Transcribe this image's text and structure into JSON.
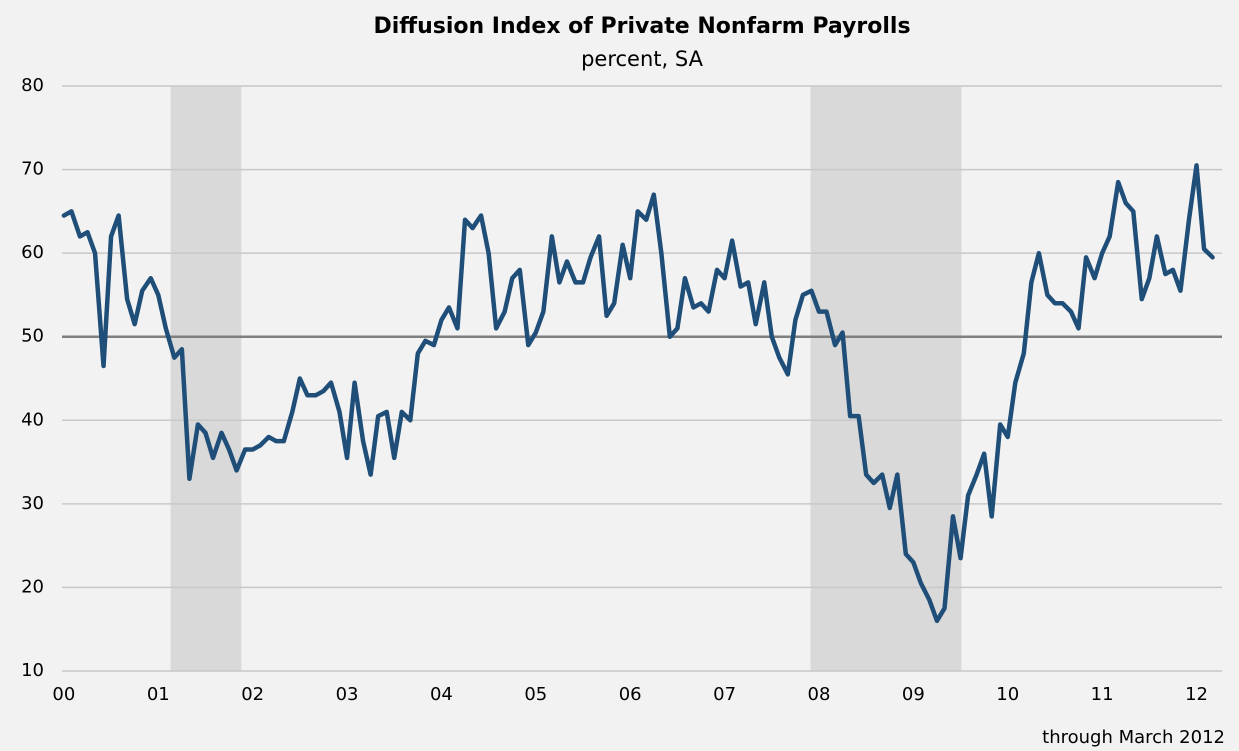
{
  "chart_data": {
    "type": "line",
    "title": "Diffusion Index of Private Nonfarm Payrolls",
    "subtitle": "percent, SA",
    "footnote": "through March 2012",
    "color": "#1f4e79",
    "x": [
      0,
      0.08,
      0.17,
      0.25,
      0.33,
      0.42,
      0.5,
      0.58,
      0.67,
      0.75,
      0.83,
      0.92,
      1,
      1.08,
      1.17,
      1.25,
      1.33,
      1.42,
      1.5,
      1.58,
      1.67,
      1.75,
      1.83,
      1.92,
      2,
      2.08,
      2.17,
      2.25,
      2.33,
      2.42,
      2.5,
      2.58,
      2.67,
      2.75,
      2.83,
      2.92,
      3,
      3.08,
      3.17,
      3.25,
      3.33,
      3.42,
      3.5,
      3.58,
      3.67,
      3.75,
      3.83,
      3.92,
      4,
      4.08,
      4.17,
      4.25,
      4.33,
      4.42,
      4.5,
      4.58,
      4.67,
      4.75,
      4.83,
      4.92,
      5,
      5.08,
      5.17,
      5.25,
      5.33,
      5.42,
      5.5,
      5.58,
      5.67,
      5.75,
      5.83,
      5.92,
      6,
      6.08,
      6.17,
      6.25,
      6.33,
      6.42,
      6.5,
      6.58,
      6.67,
      6.75,
      6.83,
      6.92,
      7,
      7.08,
      7.17,
      7.25,
      7.33,
      7.42,
      7.5,
      7.58,
      7.67,
      7.75,
      7.83,
      7.92,
      8,
      8.08,
      8.17,
      8.25,
      8.33,
      8.42,
      8.5,
      8.58,
      8.67,
      8.75,
      8.83,
      8.92,
      9,
      9.08,
      9.17,
      9.25,
      9.33,
      9.42,
      9.5,
      9.58,
      9.67,
      9.75,
      9.83,
      9.92,
      10,
      10.08,
      10.17,
      10.25,
      10.33,
      10.42,
      10.5,
      10.58,
      10.67,
      10.75,
      10.83,
      10.92,
      11,
      11.08,
      11.17,
      11.25,
      11.33,
      11.42,
      11.5,
      11.58,
      11.67,
      11.75,
      11.83,
      11.92,
      12,
      12.08,
      12.17
    ],
    "values": [
      64.5,
      65,
      62,
      62.5,
      60,
      46.5,
      62,
      64.5,
      54.5,
      51.5,
      55.5,
      57,
      55,
      51,
      47.5,
      48.5,
      33,
      39.5,
      38.5,
      35.5,
      38.5,
      36.5,
      34,
      36.5,
      36.5,
      37,
      38,
      37.5,
      37.5,
      41,
      45,
      43,
      43,
      43.5,
      44.5,
      41,
      35.5,
      44.5,
      37.5,
      33.5,
      40.5,
      41,
      35.5,
      41,
      40,
      48,
      49.5,
      49,
      52,
      53.5,
      51,
      64,
      63,
      64.5,
      60,
      51,
      53,
      57,
      58,
      49,
      50.5,
      53,
      62,
      56.5,
      59,
      56.5,
      56.5,
      59.5,
      62,
      52.5,
      54,
      61,
      57,
      65,
      64,
      67,
      60,
      50,
      51,
      57,
      53.5,
      54,
      53,
      58,
      57,
      61.5,
      56,
      56.5,
      51.5,
      56.5,
      50,
      47.5,
      45.5,
      52,
      55,
      55.5,
      53,
      53,
      49,
      50.5,
      40.5,
      40.5,
      33.5,
      32.5,
      33.5,
      29.5,
      33.5,
      24,
      23,
      20.5,
      18.5,
      16,
      17.5,
      28.5,
      23.5,
      31,
      33.5,
      36,
      28.5,
      39.5,
      38,
      44.5,
      48,
      56.5,
      60,
      55,
      54,
      54,
      53,
      51,
      59.5,
      57,
      60,
      62,
      68.5,
      66,
      65,
      54.5,
      57,
      62,
      57.5,
      58,
      55.5,
      64,
      70.5,
      60.5,
      59.5
    ],
    "xlim": [
      -0.02,
      12.27
    ],
    "xticks": [
      {
        "value": 0,
        "label": "00"
      },
      {
        "value": 1,
        "label": "01"
      },
      {
        "value": 2,
        "label": "02"
      },
      {
        "value": 3,
        "label": "03"
      },
      {
        "value": 4,
        "label": "04"
      },
      {
        "value": 5,
        "label": "05"
      },
      {
        "value": 6,
        "label": "06"
      },
      {
        "value": 7,
        "label": "07"
      },
      {
        "value": 8,
        "label": "08"
      },
      {
        "value": 9,
        "label": "09"
      },
      {
        "value": 10,
        "label": "10"
      },
      {
        "value": 11,
        "label": "11"
      },
      {
        "value": 12,
        "label": "12"
      }
    ],
    "ylim": [
      10,
      80
    ],
    "yticks": [
      10,
      20,
      30,
      40,
      50,
      60,
      70,
      80
    ],
    "grid": true,
    "reference_line": 50,
    "shaded_regions": [
      {
        "start": 1.13,
        "end": 1.88
      },
      {
        "start": 7.91,
        "end": 9.51
      }
    ]
  }
}
